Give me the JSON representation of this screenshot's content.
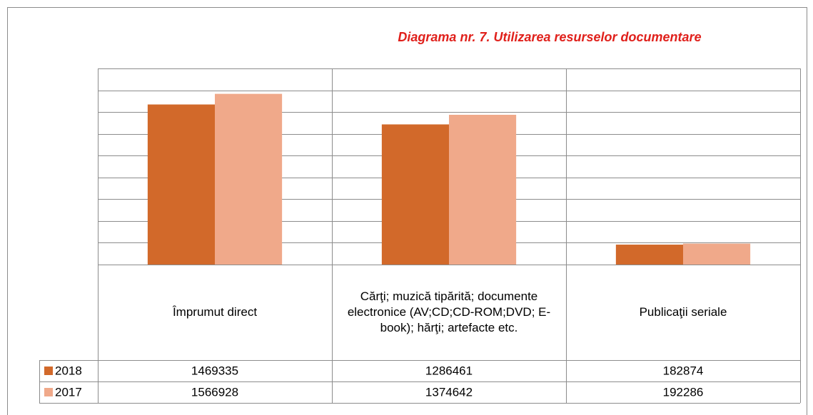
{
  "chart_data": {
    "type": "bar",
    "title": "Diagrama nr. 7. Utilizarea resurselor documentare",
    "categories": [
      "Împrumut direct",
      "Cărţi; muzică tipărită; documente electronice (AV;CD;CD-ROM;DVD; E-book); hărţi; artefacte etc.",
      "Publicaţii seriale"
    ],
    "series": [
      {
        "name": "2018",
        "color": "#d2692a",
        "values": [
          1469335,
          1286461,
          182874
        ]
      },
      {
        "name": "2017",
        "color": "#f0a98a",
        "values": [
          1566928,
          1374642,
          192286
        ]
      }
    ],
    "ylim": [
      0,
      1800000
    ],
    "yticks": [
      0,
      200000,
      400000,
      600000,
      800000,
      1000000,
      1200000,
      1400000,
      1600000,
      1800000
    ],
    "grid": true,
    "data_table": true
  }
}
